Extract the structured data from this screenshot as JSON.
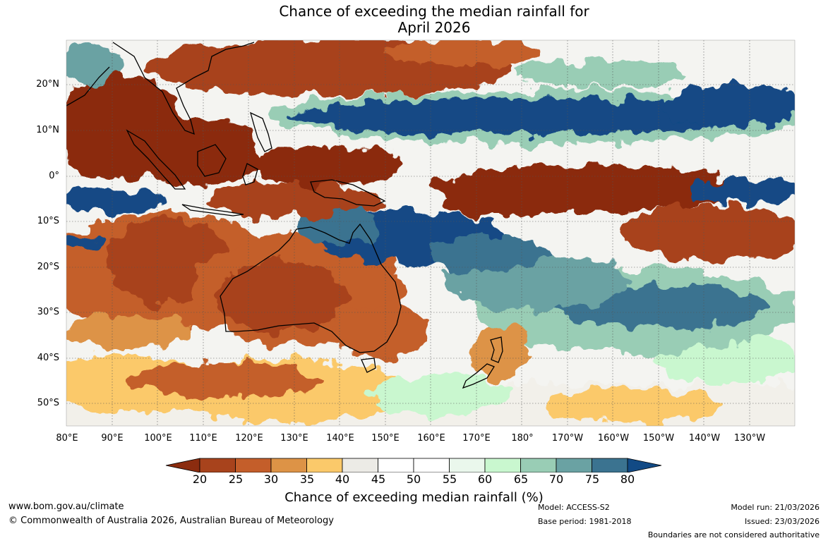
{
  "title": {
    "line1": "Chance of exceeding the median rainfall for",
    "line2": "April 2026"
  },
  "lat_labels": [
    "20°N",
    "10°N",
    "0°",
    "10°S",
    "20°S",
    "30°S",
    "40°S",
    "50°S"
  ],
  "lon_labels": [
    "80°E",
    "90°E",
    "100°E",
    "110°E",
    "120°E",
    "130°E",
    "140°E",
    "150°E",
    "160°E",
    "170°E",
    "180°",
    "170°W",
    "160°W",
    "150°W",
    "140°W",
    "130°W"
  ],
  "colorbar": {
    "ticks": [
      "20",
      "25",
      "30",
      "35",
      "40",
      "45",
      "50",
      "55",
      "60",
      "65",
      "70",
      "75",
      "80"
    ],
    "colors": [
      "#8b2c0f",
      "#a8431c",
      "#c45e2a",
      "#dd9346",
      "#fbc96a",
      "#ecebe6",
      "#ffffff",
      "#ffffff",
      "#eaf7ec",
      "#c9f7cf",
      "#99cdb5",
      "#6aa2a3",
      "#3b7390",
      "#124a85"
    ],
    "label": "Chance of exceeding median rainfall (%)"
  },
  "footer": {
    "url": "www.bom.gov.au/climate",
    "copyright": "© Commonwealth of Australia 2026, Australian Bureau of Meteorology",
    "model": "Model: ACCESS-S2",
    "base_period": "Base period: 1981-2018",
    "model_run": "Model run: 21/03/2026",
    "issued": "Issued: 23/03/2026",
    "disclaimer": "Boundaries are not considered authoritative"
  }
}
